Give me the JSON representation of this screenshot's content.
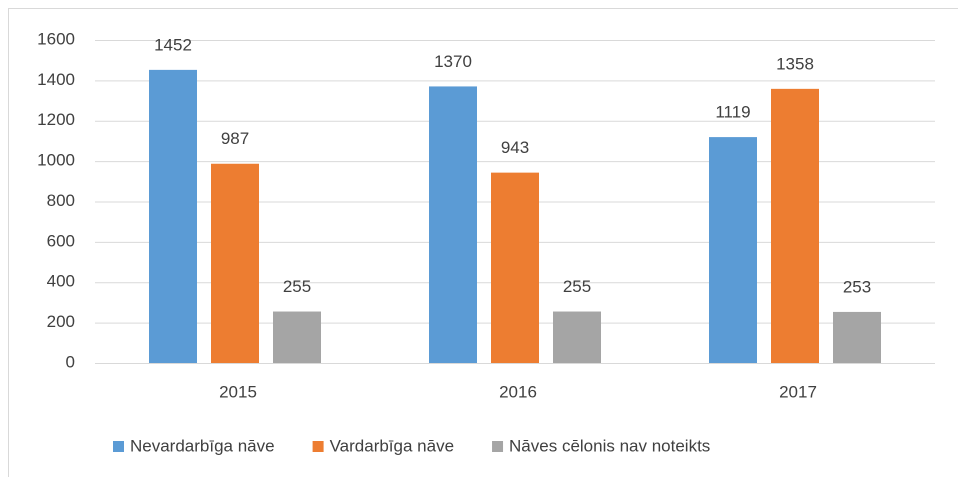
{
  "chart_data": {
    "type": "bar",
    "categories": [
      "2015",
      "2016",
      "2017"
    ],
    "series": [
      {
        "name": "Nevardarbīga nāve",
        "color": "#5b9bd5",
        "values": [
          1452,
          1370,
          1119
        ]
      },
      {
        "name": "Vardarbīga nāve",
        "color": "#ed7d31",
        "values": [
          987,
          943,
          1358
        ]
      },
      {
        "name": "Nāves cēlonis nav noteikts",
        "color": "#a5a5a5",
        "values": [
          255,
          255,
          253
        ]
      }
    ],
    "ylim": [
      0,
      1600
    ],
    "yticks": [
      0,
      200,
      400,
      600,
      800,
      1000,
      1200,
      1400,
      1600
    ],
    "grid": true,
    "legend": "bottom",
    "data_labels": true
  }
}
